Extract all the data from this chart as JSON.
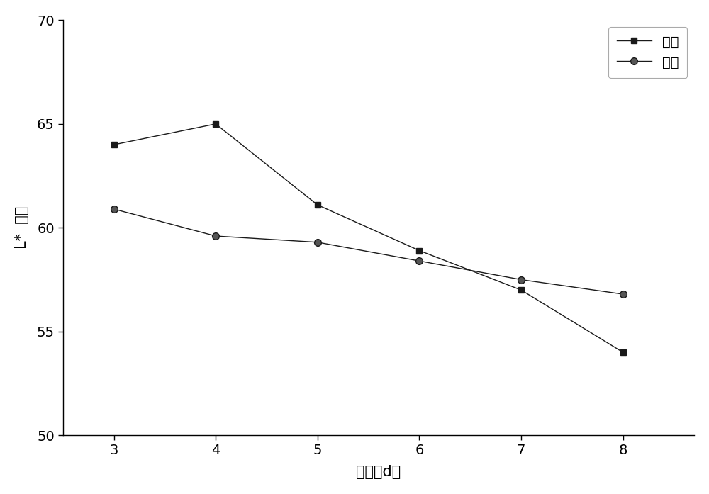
{
  "x": [
    3,
    4,
    5,
    6,
    7,
    8
  ],
  "control_y": [
    64.0,
    65.0,
    61.1,
    58.9,
    57.0,
    54.0
  ],
  "sample_y": [
    60.9,
    59.6,
    59.3,
    58.4,
    57.5,
    56.8
  ],
  "xlabel": "时间（d）",
  "ylabel": "L*  明度",
  "xlim": [
    2.5,
    8.7
  ],
  "ylim": [
    50,
    70
  ],
  "yticks": [
    50,
    55,
    60,
    65,
    70
  ],
  "xticks": [
    3,
    4,
    5,
    6,
    7,
    8
  ],
  "legend_control": "对照",
  "legend_sample": "样本",
  "line_color": "#1a1a1a",
  "marker_color_control": "#1a1a1a",
  "marker_color_sample": "#555555",
  "background_color": "#ffffff",
  "label_fontsize": 15,
  "tick_fontsize": 14,
  "legend_fontsize": 14
}
